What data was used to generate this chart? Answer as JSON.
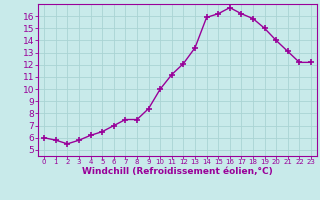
{
  "x": [
    0,
    1,
    2,
    3,
    4,
    5,
    6,
    7,
    8,
    9,
    10,
    11,
    12,
    13,
    14,
    15,
    16,
    17,
    18,
    19,
    20,
    21,
    22,
    23
  ],
  "y": [
    6.0,
    5.8,
    5.5,
    5.8,
    6.2,
    6.5,
    7.0,
    7.5,
    7.5,
    8.4,
    10.0,
    11.2,
    12.1,
    13.4,
    15.9,
    16.2,
    16.7,
    16.2,
    15.8,
    15.0,
    14.0,
    13.1,
    12.2,
    12.2
  ],
  "line_color": "#990099",
  "marker": "+",
  "marker_size": 4,
  "marker_linewidth": 1.2,
  "line_width": 1.0,
  "xlabel": "Windchill (Refroidissement éolien,°C)",
  "xlim": [
    -0.5,
    23.5
  ],
  "ylim": [
    4.5,
    17.0
  ],
  "yticks": [
    5,
    6,
    7,
    8,
    9,
    10,
    11,
    12,
    13,
    14,
    15,
    16
  ],
  "xticks": [
    0,
    1,
    2,
    3,
    4,
    5,
    6,
    7,
    8,
    9,
    10,
    11,
    12,
    13,
    14,
    15,
    16,
    17,
    18,
    19,
    20,
    21,
    22,
    23
  ],
  "bg_color": "#c8eaea",
  "grid_color": "#aad4d4",
  "tick_color": "#990099",
  "label_color": "#990099",
  "xlabel_fontsize": 6.5,
  "ytick_fontsize": 6.5,
  "xtick_fontsize": 5.0,
  "spine_color": "#990099"
}
